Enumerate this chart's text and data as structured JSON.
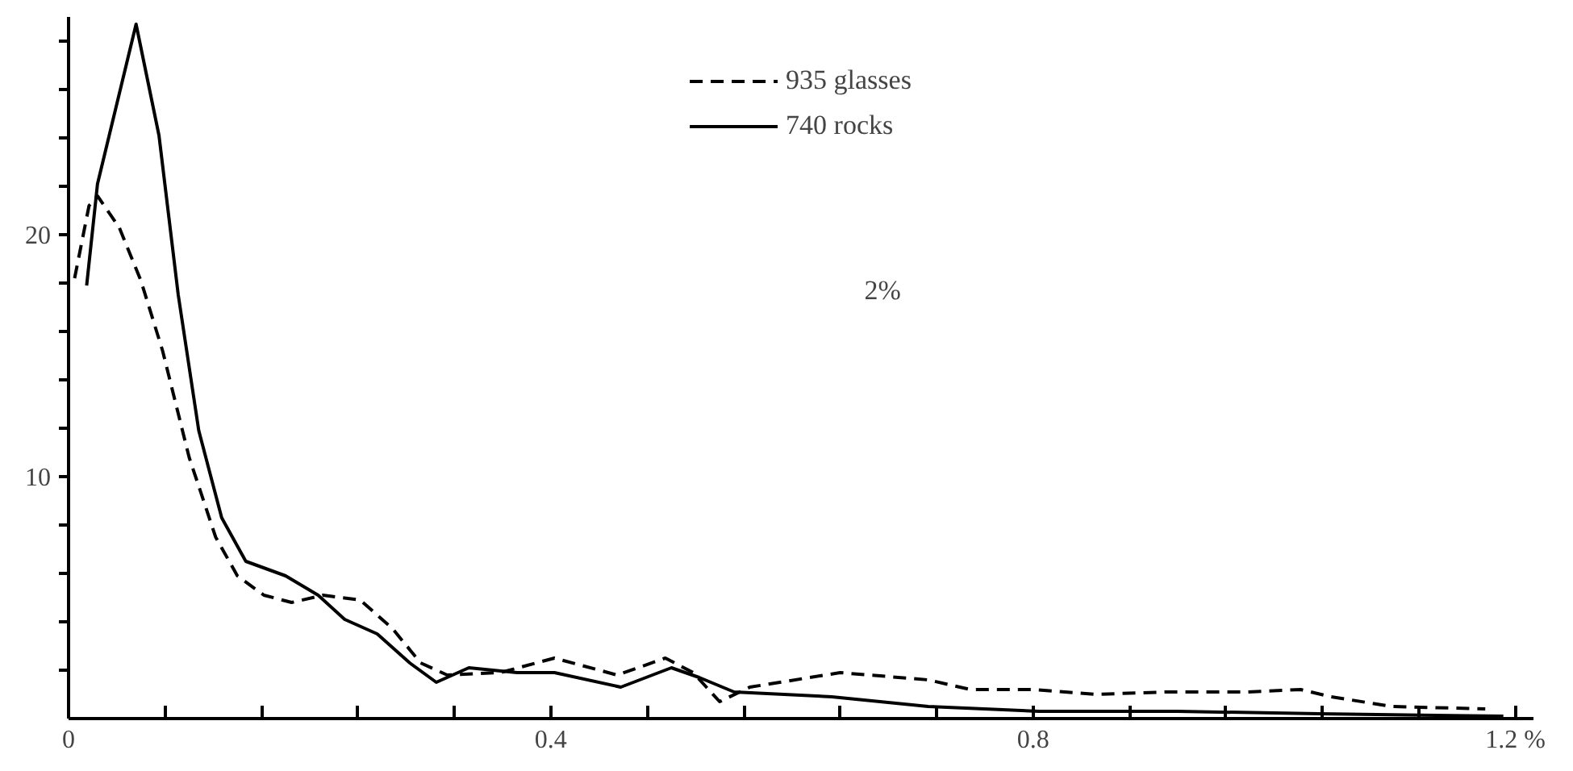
{
  "chart_data": {
    "type": "line",
    "xlim": [
      0,
      1.215
    ],
    "ylim": [
      0,
      29
    ],
    "xticks": [
      0,
      {
        "value": 0.08,
        "label": null
      },
      {
        "value": 0.16,
        "label": null
      },
      {
        "value": 0.24,
        "label": null
      },
      {
        "value": 0.32,
        "label": null
      },
      0.4,
      {
        "value": 0.48,
        "label": null
      },
      {
        "value": 0.56,
        "label": null
      },
      {
        "value": 0.64,
        "label": null
      },
      {
        "value": 0.72,
        "label": null
      },
      0.8,
      {
        "value": 0.88,
        "label": null
      },
      {
        "value": 0.96,
        "label": null
      },
      {
        "value": 1.04,
        "label": null
      },
      {
        "value": 1.12,
        "label": null
      },
      {
        "value": 1.2,
        "label": "1.2 %"
      }
    ],
    "yticks": [
      {
        "value": 2,
        "label": null
      },
      {
        "value": 4,
        "label": null
      },
      {
        "value": 6,
        "label": null
      },
      {
        "value": 8,
        "label": null
      },
      10,
      {
        "value": 12,
        "label": null
      },
      {
        "value": 14,
        "label": null
      },
      {
        "value": 16,
        "label": null
      },
      {
        "value": 18,
        "label": null
      },
      20,
      {
        "value": 22,
        "label": null
      },
      {
        "value": 24,
        "label": null
      },
      {
        "value": 26,
        "label": null
      },
      {
        "value": 28,
        "label": null
      }
    ],
    "grid": false,
    "legend": "top",
    "annotations": [
      "2%"
    ],
    "series": [
      {
        "name": "935 glasses",
        "color": "#000000",
        "line_style": "dashed",
        "x": [
          0.005,
          0.017,
          0.024,
          0.042,
          0.06,
          0.078,
          0.1,
          0.122,
          0.14,
          0.162,
          0.185,
          0.211,
          0.242,
          0.269,
          0.292,
          0.314,
          0.358,
          0.403,
          0.455,
          0.495,
          0.518,
          0.54,
          0.565,
          0.64,
          0.713,
          0.748,
          0.8,
          0.852,
          0.91,
          0.978,
          1.022,
          1.047,
          1.098,
          1.175
        ],
        "values": [
          18.2,
          21.2,
          21.6,
          20.3,
          18.1,
          15.2,
          10.8,
          7.5,
          5.9,
          5.1,
          4.8,
          5.1,
          4.9,
          3.7,
          2.3,
          1.8,
          1.9,
          2.5,
          1.8,
          2.5,
          1.9,
          0.7,
          1.3,
          1.9,
          1.6,
          1.2,
          1.2,
          1.0,
          1.1,
          1.1,
          1.2,
          0.9,
          0.5,
          0.4
        ]
      },
      {
        "name": "740 rocks",
        "color": "#000000",
        "line_style": "solid",
        "x": [
          0.015,
          0.024,
          0.056,
          0.075,
          0.091,
          0.108,
          0.127,
          0.147,
          0.18,
          0.207,
          0.229,
          0.256,
          0.283,
          0.305,
          0.332,
          0.372,
          0.403,
          0.458,
          0.5,
          0.523,
          0.552,
          0.633,
          0.713,
          0.805,
          0.92,
          1.037,
          1.19
        ],
        "values": [
          17.9,
          22.1,
          28.7,
          24.1,
          17.5,
          11.9,
          8.3,
          6.5,
          5.9,
          5.1,
          4.1,
          3.5,
          2.3,
          1.5,
          2.1,
          1.9,
          1.9,
          1.3,
          2.1,
          1.7,
          1.1,
          0.9,
          0.5,
          0.3,
          0.3,
          0.2,
          0.1
        ]
      }
    ]
  }
}
